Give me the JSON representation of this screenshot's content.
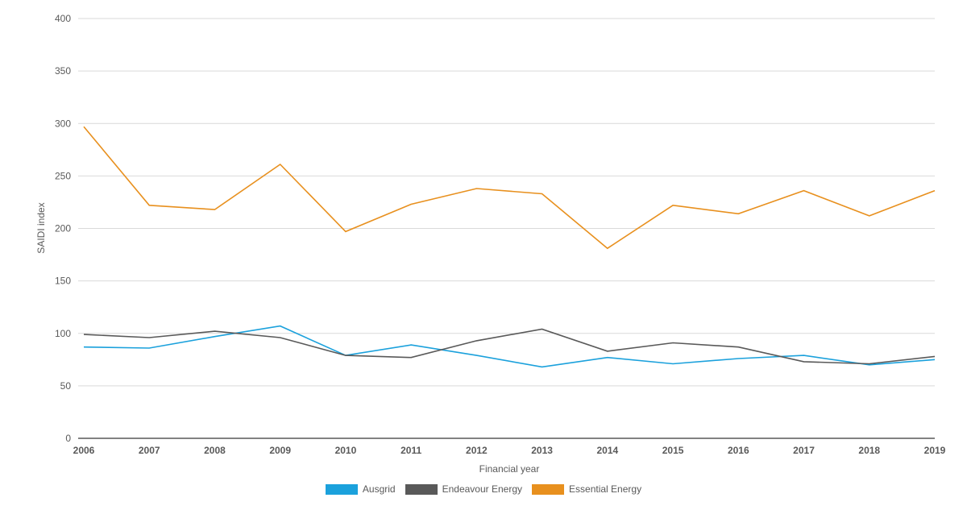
{
  "chart_data": {
    "type": "line",
    "title": "",
    "xlabel": "Financial year",
    "ylabel": "SAIDI index",
    "ylim": [
      0,
      400
    ],
    "yticks": [
      "0",
      "50",
      "100",
      "150",
      "200",
      "250",
      "300",
      "350",
      "400"
    ],
    "categories": [
      "2006",
      "2007",
      "2008",
      "2009",
      "2010",
      "2011",
      "2012",
      "2013",
      "2014",
      "2015",
      "2016",
      "2017",
      "2018",
      "2019"
    ],
    "grid": true,
    "legend_position": "bottom-center",
    "series": [
      {
        "name": "Ausgrid",
        "color": "#1ba1dc",
        "values": [
          87,
          86,
          97,
          107,
          79,
          89,
          79,
          68,
          77,
          71,
          76,
          79,
          70,
          75
        ]
      },
      {
        "name": "Endeavour Energy",
        "color": "#595959",
        "values": [
          99,
          96,
          102,
          96,
          79,
          77,
          93,
          104,
          83,
          91,
          87,
          73,
          71,
          78
        ]
      },
      {
        "name": "Essential Energy",
        "color": "#e8901e",
        "values": [
          297,
          222,
          218,
          261,
          197,
          223,
          238,
          233,
          181,
          222,
          214,
          236,
          212,
          236
        ]
      }
    ]
  }
}
